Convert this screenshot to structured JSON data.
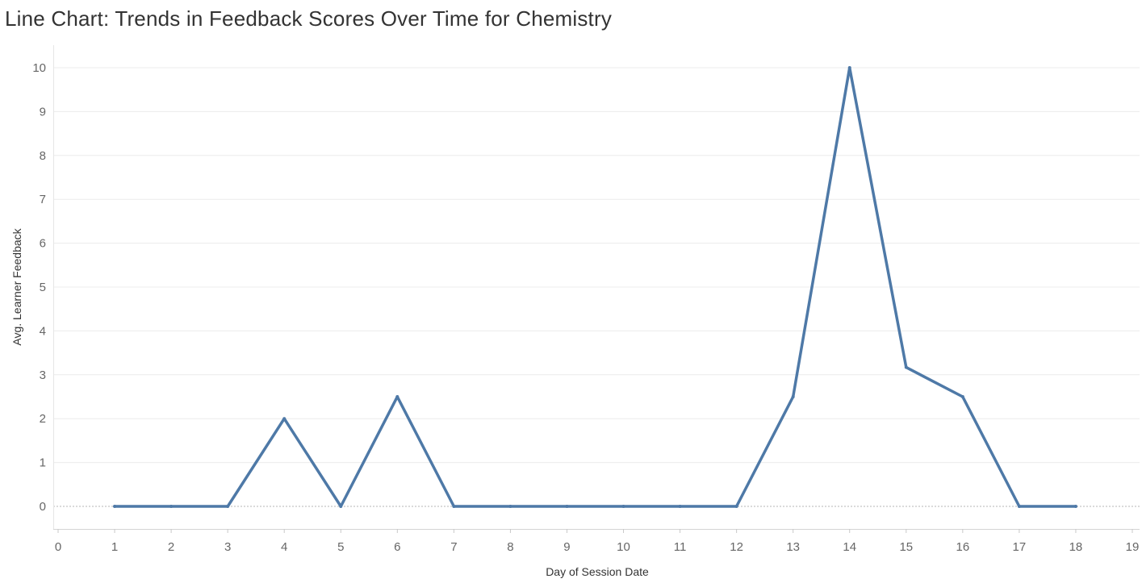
{
  "chart_data": {
    "type": "line",
    "title": "Line Chart: Trends in Feedback Scores Over Time for Chemistry",
    "xlabel": "Day of Session Date",
    "ylabel": "Avg. Learner Feedback",
    "xlim": [
      0,
      19
    ],
    "ylim": [
      0,
      10
    ],
    "x_ticks": [
      0,
      1,
      2,
      3,
      4,
      5,
      6,
      7,
      8,
      9,
      10,
      11,
      12,
      13,
      14,
      15,
      16,
      17,
      18,
      19
    ],
    "y_ticks": [
      0,
      1,
      2,
      3,
      4,
      5,
      6,
      7,
      8,
      9,
      10
    ],
    "grid": true,
    "line_color": "#4e79a7",
    "series": [
      {
        "x": [
          1,
          2,
          3,
          4,
          5,
          6,
          7,
          8,
          9,
          10,
          11,
          12,
          13,
          14,
          15,
          16,
          17,
          18
        ],
        "values": [
          0,
          0,
          0,
          2,
          0,
          2.5,
          0,
          0,
          0,
          0,
          0,
          0,
          2.5,
          10,
          3.17,
          2.5,
          0,
          0
        ]
      }
    ]
  }
}
